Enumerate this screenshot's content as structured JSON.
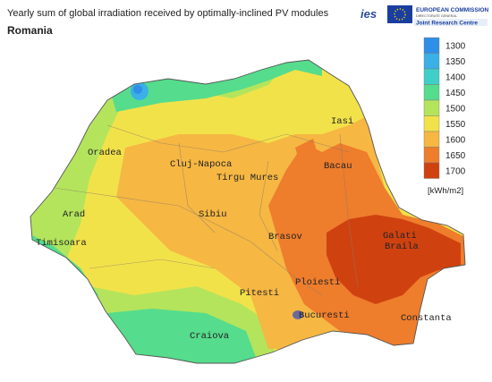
{
  "header": {
    "title": "Yearly sum of global irradiation received by optimally-inclined PV modules",
    "country": "Romania"
  },
  "logos": {
    "ies": "ies",
    "ec_line1": "EUROPEAN COMMISSION",
    "ec_line2": "DIRECTORATE GENERAL",
    "ec_line3": "Joint Research Centre"
  },
  "legend": {
    "unit": "[kWh/m2]",
    "items": [
      {
        "value": 1300,
        "color": "#2f8fe8"
      },
      {
        "value": 1350,
        "color": "#3ab0e6"
      },
      {
        "value": 1400,
        "color": "#3fcfc8"
      },
      {
        "value": 1450,
        "color": "#55dc8c"
      },
      {
        "value": 1500,
        "color": "#b4e45c"
      },
      {
        "value": 1550,
        "color": "#f2e24a"
      },
      {
        "value": 1600,
        "color": "#f6b743"
      },
      {
        "value": 1650,
        "color": "#ee7d2c"
      },
      {
        "value": 1700,
        "color": "#cf4210"
      }
    ]
  },
  "cities": [
    "Iasi",
    "Oradea",
    "Cluj-Napoca",
    "Tirgu Mures",
    "Bacau",
    "Arad",
    "Timisoara",
    "Sibiu",
    "Brasov",
    "Galati",
    "Braila",
    "Ploiesti",
    "Pitesti",
    "Bucuresti",
    "Constanta",
    "Craiova"
  ]
}
